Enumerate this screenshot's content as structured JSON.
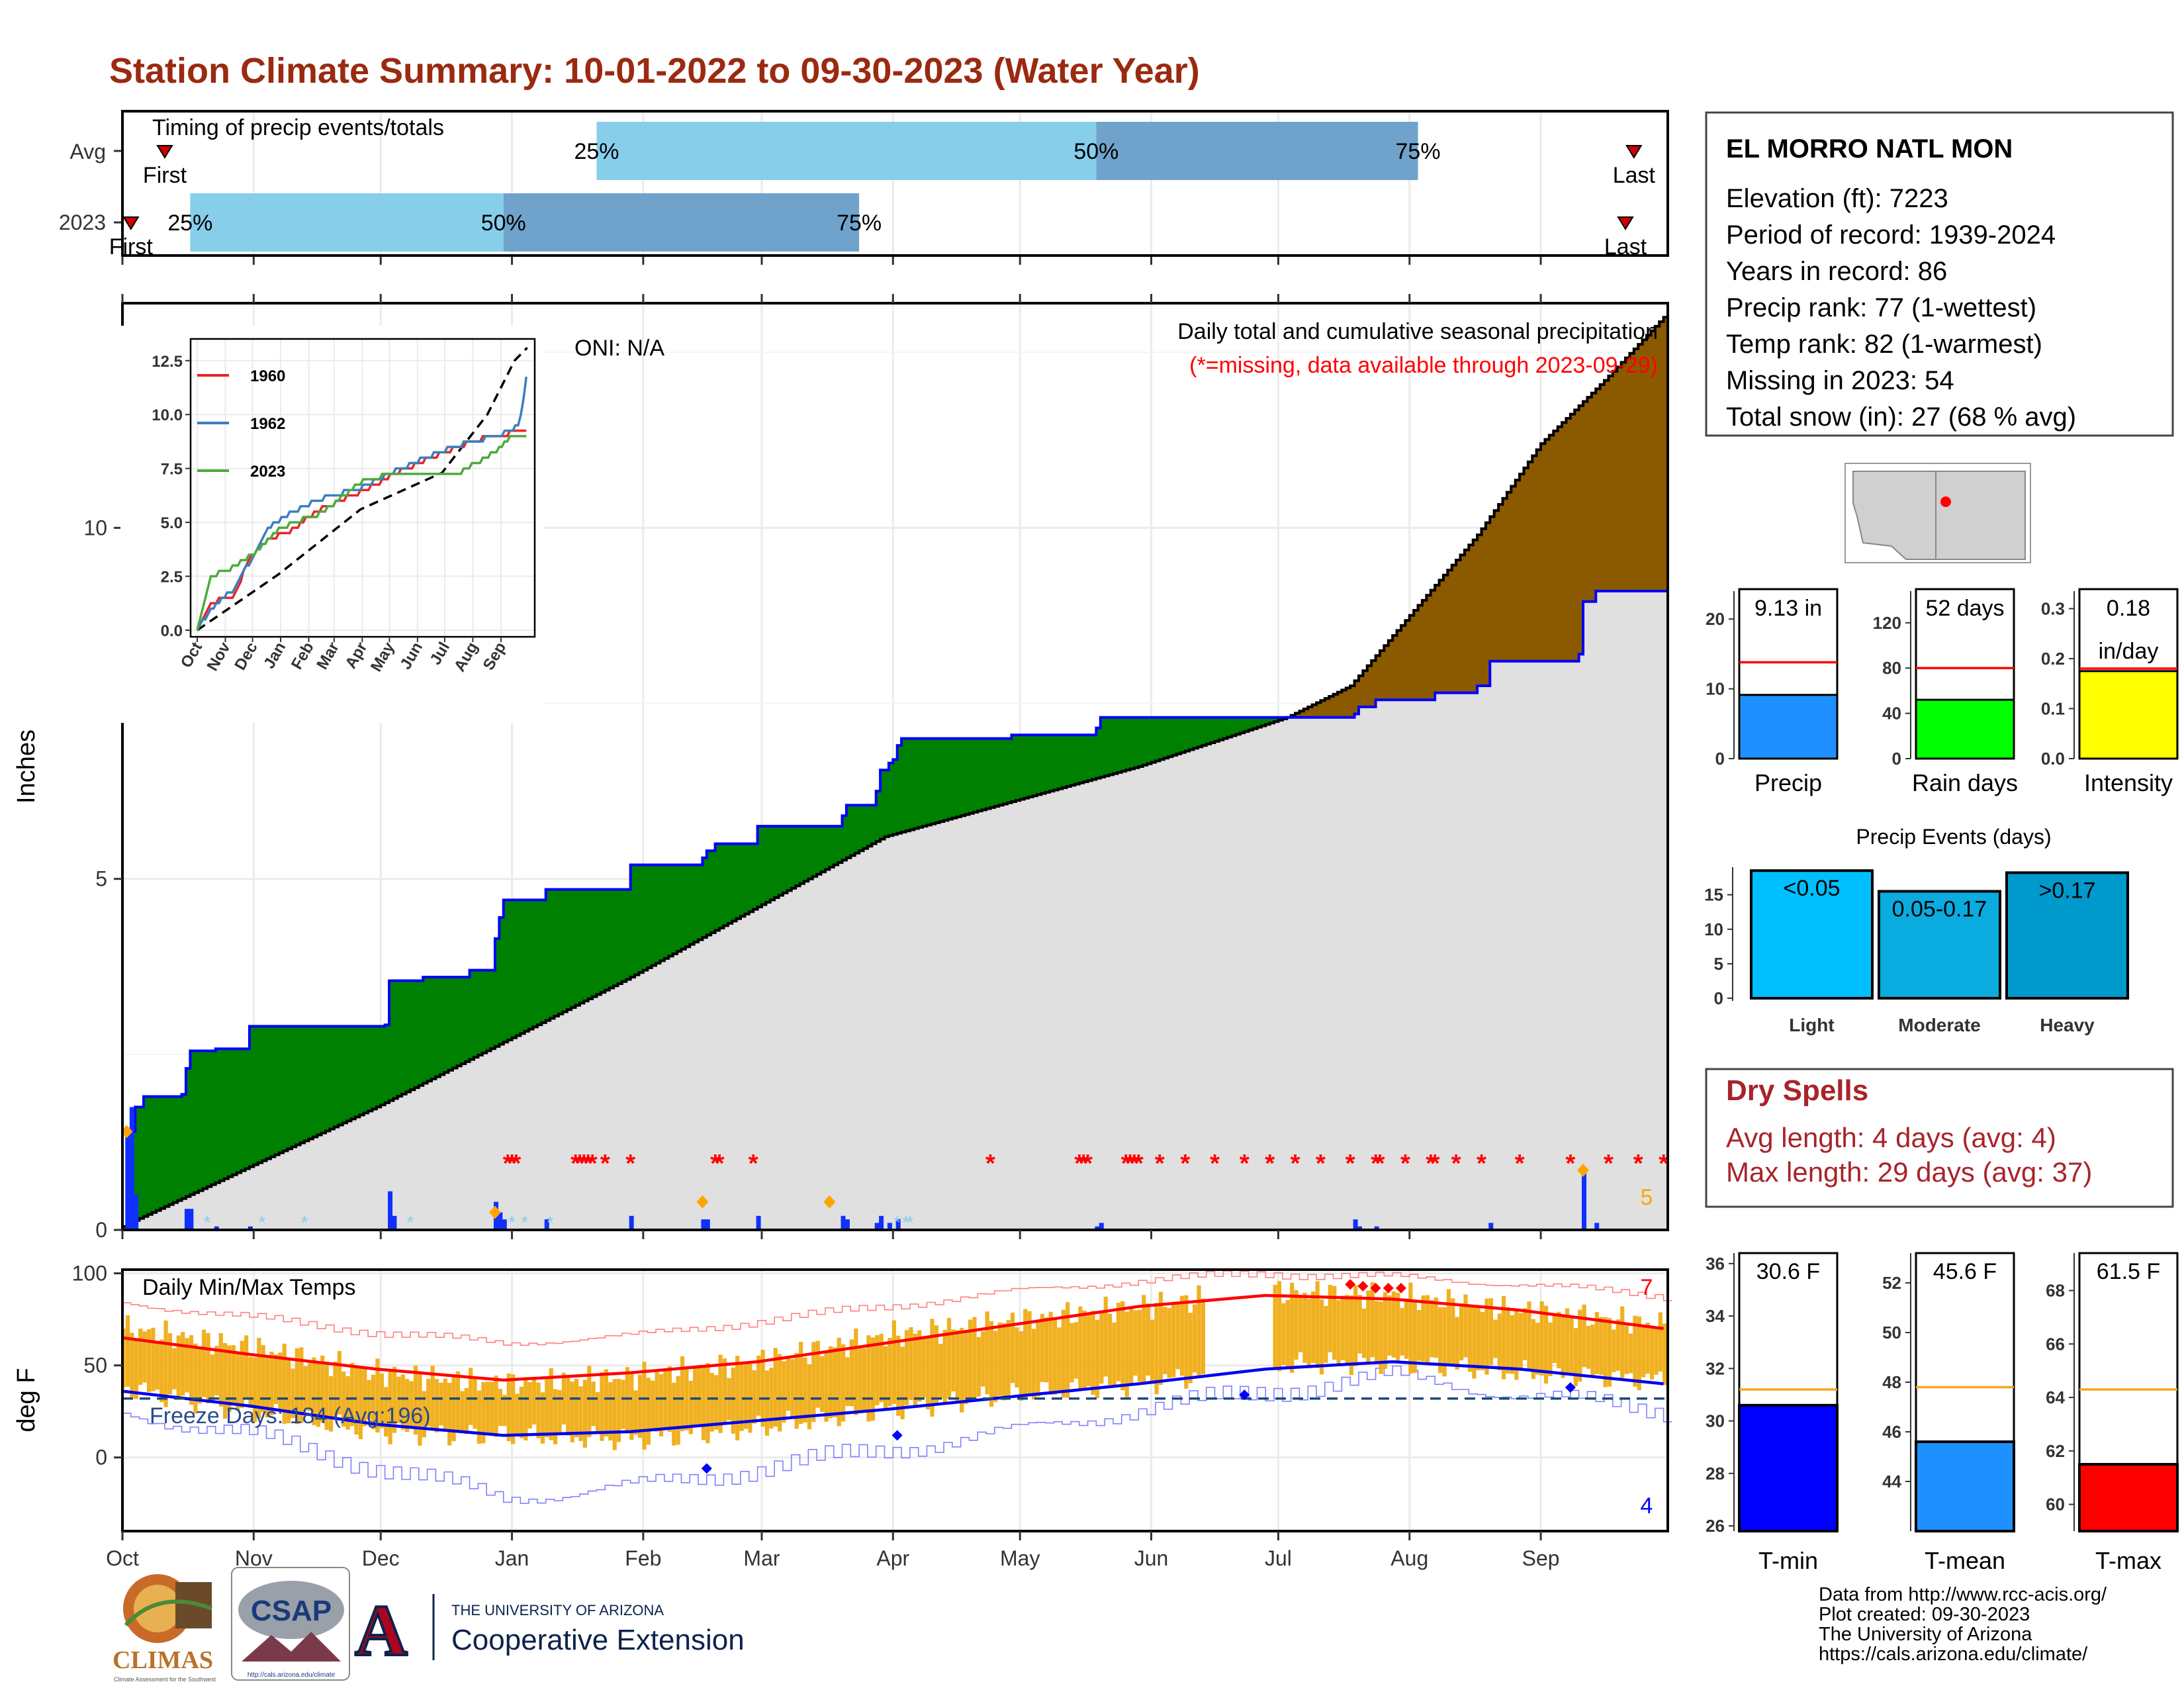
{
  "title": "Station Climate Summary: 10-01-2022 to 09-30-2023 (Water Year)",
  "timing": {
    "title": "Timing of precip events/totals",
    "rows": [
      {
        "label": "Avg",
        "first": "First",
        "last": "Last",
        "q25": "25%",
        "q50": "50%",
        "q75": "75%",
        "first_doy": 10,
        "q25_doy": 112,
        "q50_doy": 230,
        "q75_doy": 306,
        "last_doy": 357
      },
      {
        "label": "2023",
        "first": "First",
        "last": "Last",
        "q25": "25%",
        "q50": "50%",
        "q75": "75%",
        "first_doy": 2,
        "q25_doy": 16,
        "q50_doy": 90,
        "q75_doy": 174,
        "last_doy": 355
      }
    ]
  },
  "precip_panel": {
    "ylabel": "Inches",
    "oni": "ONI: N/A",
    "subtitle1": "Daily total and cumulative seasonal precipitation",
    "subtitle2": "(*=missing, data available through 2023-09-29)",
    "top_count": "5",
    "yticks": [
      "0",
      "5",
      "10"
    ],
    "ymax": 13.2,
    "cum_2023_knots": [
      [
        0,
        0
      ],
      [
        1,
        1.4
      ],
      [
        3,
        1.75
      ],
      [
        5,
        1.9
      ],
      [
        14,
        1.93
      ],
      [
        15,
        2.3
      ],
      [
        16,
        2.55
      ],
      [
        22,
        2.58
      ],
      [
        30,
        2.9
      ],
      [
        62,
        2.92
      ],
      [
        63,
        3.55
      ],
      [
        71,
        3.6
      ],
      [
        82,
        3.7
      ],
      [
        88,
        4.15
      ],
      [
        89,
        4.45
      ],
      [
        90,
        4.7
      ],
      [
        100,
        4.85
      ],
      [
        120,
        5.2
      ],
      [
        137,
        5.3
      ],
      [
        138,
        5.4
      ],
      [
        140,
        5.5
      ],
      [
        150,
        5.75
      ],
      [
        170,
        5.9
      ],
      [
        171,
        6.05
      ],
      [
        178,
        6.25
      ],
      [
        179,
        6.55
      ],
      [
        181,
        6.65
      ],
      [
        182,
        6.7
      ],
      [
        183,
        6.9
      ],
      [
        184,
        7.0
      ],
      [
        210,
        7.05
      ],
      [
        230,
        7.15
      ],
      [
        231,
        7.3
      ],
      [
        262,
        7.3
      ],
      [
        277,
        7.3
      ],
      [
        291,
        7.35
      ],
      [
        292,
        7.45
      ],
      [
        296,
        7.55
      ],
      [
        310,
        7.65
      ],
      [
        320,
        7.75
      ],
      [
        323,
        8.1
      ],
      [
        344,
        8.2
      ],
      [
        345,
        8.95
      ],
      [
        348,
        9.1
      ],
      [
        364,
        9.1
      ]
    ],
    "cum_avg_knots": [
      [
        0,
        0.05
      ],
      [
        60,
        1.75
      ],
      [
        120,
        3.6
      ],
      [
        180,
        5.6
      ],
      [
        240,
        6.6
      ],
      [
        275,
        7.3
      ],
      [
        290,
        7.75
      ],
      [
        320,
        9.9
      ],
      [
        335,
        11.2
      ],
      [
        350,
        12.1
      ],
      [
        364,
        13.0
      ]
    ],
    "daily_bars": [
      [
        1,
        1.4
      ],
      [
        2,
        1.75
      ],
      [
        3,
        0.5
      ],
      [
        15,
        0.3
      ],
      [
        16,
        0.3
      ],
      [
        22,
        0.05
      ],
      [
        30,
        0.05
      ],
      [
        63,
        0.55
      ],
      [
        64,
        0.2
      ],
      [
        88,
        0.4
      ],
      [
        89,
        0.25
      ],
      [
        90,
        0.15
      ],
      [
        100,
        0.15
      ],
      [
        120,
        0.2
      ],
      [
        137,
        0.15
      ],
      [
        138,
        0.15
      ],
      [
        150,
        0.2
      ],
      [
        170,
        0.2
      ],
      [
        171,
        0.15
      ],
      [
        178,
        0.1
      ],
      [
        179,
        0.2
      ],
      [
        181,
        0.1
      ],
      [
        183,
        0.15
      ],
      [
        230,
        0.05
      ],
      [
        231,
        0.1
      ],
      [
        291,
        0.15
      ],
      [
        292,
        0.05
      ],
      [
        296,
        0.05
      ],
      [
        323,
        0.1
      ],
      [
        345,
        0.85
      ],
      [
        348,
        0.1
      ]
    ],
    "snow_days": [
      20,
      33,
      43,
      68,
      92,
      95,
      101,
      183,
      185,
      186
    ],
    "orange_points": [
      [
        1,
        1.4
      ],
      [
        88,
        0.25
      ],
      [
        137,
        0.4
      ],
      [
        167,
        0.4
      ],
      [
        345,
        0.85
      ]
    ],
    "missing_days": [
      91,
      92,
      93,
      107,
      108,
      109,
      110,
      111,
      114,
      120,
      140,
      141,
      149,
      205,
      226,
      227,
      228,
      237,
      238,
      239,
      240,
      245,
      251,
      258,
      265,
      271,
      277,
      283,
      290,
      296,
      297,
      303,
      309,
      310,
      315,
      321,
      330,
      342,
      351,
      358,
      364
    ],
    "years_note": "5"
  },
  "inset": {
    "yticks": [
      "0.0",
      "2.5",
      "5.0",
      "7.5",
      "10.0",
      "12.5"
    ],
    "xticks": [
      "Oct",
      "Nov",
      "Dec",
      "Jan",
      "Feb",
      "Mar",
      "Apr",
      "May",
      "Jun",
      "Jul",
      "Aug",
      "Sep"
    ],
    "ymax": 13.2,
    "legend": [
      {
        "name": "1960",
        "color": "#e8242a"
      },
      {
        "name": "1962",
        "color": "#3a7fbf"
      },
      {
        "name": "2023",
        "color": "#4daa3c"
      }
    ],
    "series": [
      {
        "name": "1960",
        "color": "#e8242a",
        "knots": [
          [
            0,
            0
          ],
          [
            15,
            1.3
          ],
          [
            40,
            1.6
          ],
          [
            60,
            3.5
          ],
          [
            80,
            4.3
          ],
          [
            100,
            4.5
          ],
          [
            130,
            5.5
          ],
          [
            180,
            6.4
          ],
          [
            220,
            7.3
          ],
          [
            270,
            8.2
          ],
          [
            320,
            9.0
          ],
          [
            360,
            9.2
          ]
        ]
      },
      {
        "name": "1962",
        "color": "#3a7fbf",
        "knots": [
          [
            0,
            0
          ],
          [
            15,
            1.0
          ],
          [
            40,
            1.9
          ],
          [
            60,
            3.3
          ],
          [
            80,
            4.8
          ],
          [
            100,
            5.4
          ],
          [
            130,
            6.0
          ],
          [
            180,
            6.6
          ],
          [
            220,
            7.4
          ],
          [
            280,
            8.5
          ],
          [
            330,
            9.0
          ],
          [
            355,
            9.5
          ],
          [
            362,
            11.3
          ],
          [
            364,
            12.2
          ]
        ]
      },
      {
        "name": "2023",
        "color": "#4daa3c",
        "knots": [
          [
            0,
            0
          ],
          [
            15,
            2.5
          ],
          [
            40,
            2.9
          ],
          [
            63,
            3.55
          ],
          [
            90,
            4.7
          ],
          [
            140,
            5.5
          ],
          [
            184,
            7.0
          ],
          [
            231,
            7.3
          ],
          [
            290,
            7.35
          ],
          [
            323,
            8.1
          ],
          [
            345,
            8.95
          ],
          [
            364,
            9.1
          ]
        ]
      }
    ],
    "avg_knots": [
      [
        0,
        0
      ],
      [
        90,
        2.6
      ],
      [
        180,
        5.6
      ],
      [
        270,
        7.3
      ],
      [
        320,
        10.0
      ],
      [
        350,
        12.5
      ],
      [
        364,
        13.1
      ]
    ]
  },
  "temp_panel": {
    "title": "Daily Min/Max Temps",
    "ylabel": "deg F",
    "freeze": "Freeze Days: 184 (Avg:196)",
    "count_hot": "7",
    "count_cold": "4",
    "yticks": [
      "0",
      "50",
      "100"
    ],
    "ymin": -40,
    "ymax": 102,
    "freeze_line": 32,
    "xticks": [
      "Oct",
      "Nov",
      "Dec",
      "Jan",
      "Feb",
      "Mar",
      "Apr",
      "May",
      "Jun",
      "Jul",
      "Aug",
      "Sep"
    ],
    "avg_max_knots": [
      [
        0,
        65
      ],
      [
        30,
        56
      ],
      [
        60,
        48
      ],
      [
        90,
        42
      ],
      [
        120,
        46
      ],
      [
        150,
        52
      ],
      [
        180,
        62
      ],
      [
        210,
        72
      ],
      [
        240,
        82
      ],
      [
        270,
        88
      ],
      [
        300,
        86
      ],
      [
        330,
        80
      ],
      [
        364,
        70
      ]
    ],
    "avg_min_knots": [
      [
        0,
        36
      ],
      [
        30,
        28
      ],
      [
        60,
        18
      ],
      [
        90,
        12
      ],
      [
        120,
        14
      ],
      [
        150,
        20
      ],
      [
        180,
        26
      ],
      [
        210,
        33
      ],
      [
        240,
        40
      ],
      [
        270,
        48
      ],
      [
        300,
        52
      ],
      [
        330,
        48
      ],
      [
        364,
        40
      ]
    ],
    "rec_max_knots": [
      [
        0,
        84
      ],
      [
        30,
        76
      ],
      [
        60,
        68
      ],
      [
        90,
        62
      ],
      [
        120,
        66
      ],
      [
        150,
        74
      ],
      [
        180,
        82
      ],
      [
        210,
        90
      ],
      [
        240,
        96
      ],
      [
        270,
        100
      ],
      [
        300,
        98
      ],
      [
        330,
        94
      ],
      [
        364,
        88
      ]
    ],
    "rec_min_knots": [
      [
        0,
        24
      ],
      [
        30,
        12
      ],
      [
        60,
        -5
      ],
      [
        90,
        -22
      ],
      [
        120,
        -16
      ],
      [
        150,
        -6
      ],
      [
        180,
        4
      ],
      [
        210,
        14
      ],
      [
        240,
        26
      ],
      [
        270,
        36
      ],
      [
        300,
        44
      ],
      [
        330,
        34
      ],
      [
        364,
        26
      ]
    ],
    "obs_max_knots": [
      [
        0,
        70
      ],
      [
        30,
        60
      ],
      [
        60,
        46
      ],
      [
        90,
        40
      ],
      [
        120,
        44
      ],
      [
        150,
        52
      ],
      [
        180,
        66
      ],
      [
        210,
        74
      ],
      [
        240,
        82
      ],
      [
        270,
        90
      ],
      [
        300,
        88
      ],
      [
        330,
        80
      ],
      [
        364,
        72
      ]
    ],
    "obs_min_knots": [
      [
        0,
        38
      ],
      [
        30,
        25
      ],
      [
        60,
        14
      ],
      [
        90,
        12
      ],
      [
        120,
        10
      ],
      [
        150,
        16
      ],
      [
        180,
        26
      ],
      [
        210,
        34
      ],
      [
        240,
        40
      ],
      [
        270,
        50
      ],
      [
        300,
        52
      ],
      [
        330,
        46
      ],
      [
        364,
        42
      ]
    ],
    "record_high_days": [
      [
        290,
        94
      ],
      [
        293,
        93
      ],
      [
        296,
        92
      ],
      [
        299,
        92
      ],
      [
        302,
        92
      ]
    ],
    "record_low_days": [
      [
        138,
        -6
      ],
      [
        183,
        12
      ],
      [
        265,
        34
      ],
      [
        342,
        38
      ]
    ]
  },
  "info": {
    "station": "EL MORRO NATL MON",
    "lines": [
      "Elevation (ft): 7223",
      "Period of record: 1939-2024",
      "Years in record: 86",
      "Precip rank: 77 (1-wettest)",
      "Temp rank: 82 (1-warmest)",
      "Missing in 2023: 54",
      "Total snow (in): 27 (68 % avg)"
    ]
  },
  "small_bars": [
    {
      "name": "Precip",
      "value_label": "9.13 in",
      "value": 9.13,
      "avg": 13.8,
      "ymax": 24,
      "yticks": [
        0,
        10,
        20
      ],
      "color": "#1e90ff"
    },
    {
      "name": "Rain days",
      "value_label": "52 days",
      "value": 52,
      "avg": 80,
      "ymax": 148,
      "yticks": [
        0,
        40,
        80,
        120
      ],
      "color": "#00ff00"
    },
    {
      "name": "Intensity",
      "value_label": "0.18",
      "value_label2": "in/day",
      "value": 0.175,
      "avg": 0.18,
      "ymax": 0.335,
      "yticks": [
        "0.0",
        "0.1",
        "0.2",
        "0.3"
      ],
      "color": "#ffff00"
    }
  ],
  "events": {
    "title": "Precip Events (days)",
    "categories": [
      "Light",
      "Moderate",
      "Heavy"
    ],
    "labels": [
      "<0.05",
      "0.05-0.17",
      ">0.17"
    ],
    "values": [
      18.5,
      15.5,
      18.2
    ],
    "colors": [
      "#00bfff",
      "#0aabdf",
      "#0099cc"
    ],
    "ymax": 19,
    "yticks": [
      0,
      5,
      10,
      15
    ]
  },
  "dry_spells": {
    "title": "Dry Spells",
    "avg_length": "Avg length: 4 days (avg: 4)",
    "max_length": "Max length: 29 days (avg: 37)"
  },
  "temp_bars": [
    {
      "name": "T-min",
      "value_label": "30.6 F",
      "value": 30.6,
      "avg": 31.2,
      "ymin": 25.8,
      "ymax": 36.4,
      "yticks": [
        26,
        28,
        30,
        32,
        34,
        36
      ],
      "color": "#0000ff"
    },
    {
      "name": "T-mean",
      "value_label": "45.6 F",
      "value": 45.6,
      "avg": 47.8,
      "ymin": 42.0,
      "ymax": 53.2,
      "yticks": [
        44,
        46,
        48,
        50,
        52
      ],
      "color": "#1e90ff"
    },
    {
      "name": "T-max",
      "value_label": "61.5 F",
      "value": 61.5,
      "avg": 64.3,
      "ymin": 59.0,
      "ymax": 69.4,
      "yticks": [
        60,
        62,
        64,
        66,
        68
      ],
      "color": "#ff0000"
    }
  ],
  "credits": [
    "Data from http://www.rcc-acis.org/",
    "Plot created: 09-30-2023",
    "The University of Arizona",
    "https://cals.arizona.edu/climate/"
  ],
  "logos": {
    "climas": "CLIMAS",
    "climas_sub": "Climate Assessment for the Southwest",
    "csap": "CSAP",
    "csap_sub": "http://cals.arizona.edu/climate",
    "ua_letter": "A",
    "ua_top": "THE UNIVERSITY OF ARIZONA",
    "ua_bottom": "Cooperative Extension"
  },
  "colors": {
    "title": "#9a2a10",
    "cum_fill_green": "#008000",
    "cum_fill_brown": "#8b5a00",
    "avg_fill_gray": "#e0e0e0",
    "cum_line": "#0000ff",
    "missing": "#ff0000",
    "temp_bar": "#f0b020"
  }
}
